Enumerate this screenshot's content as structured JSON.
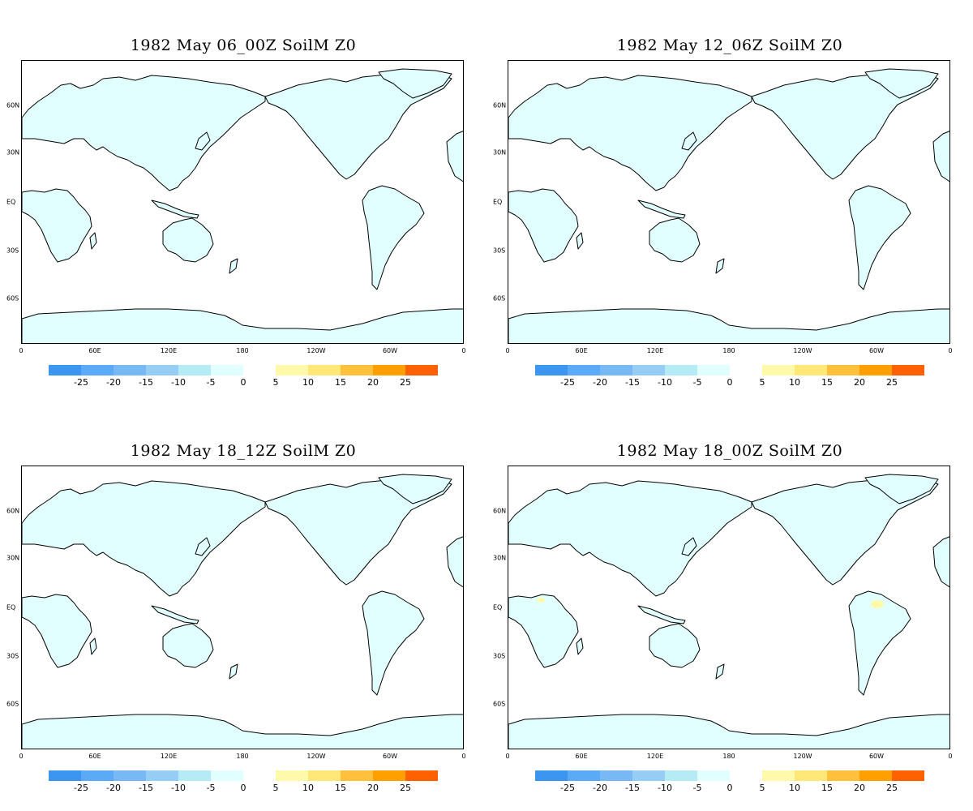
{
  "panels": [
    {
      "title": "1982 May 06_00Z SoilM Z0",
      "yellow_patch": false
    },
    {
      "title": "1982 May 12_06Z SoilM Z0",
      "yellow_patch": false
    },
    {
      "title": "1982 May 18_12Z SoilM Z0",
      "yellow_patch": false
    },
    {
      "title": "1982 May 18_00Z SoilM Z0",
      "yellow_patch": true
    }
  ],
  "lat_labels": [
    "60N",
    "30N",
    "EQ",
    "30S",
    "60S"
  ],
  "lon_labels": [
    "0",
    "60E",
    "120E",
    "180",
    "120W",
    "60W",
    "0"
  ],
  "colorbar": {
    "negative_colors": [
      "#3c96f0",
      "#5aaaf5",
      "#78b9f5",
      "#96cdf5",
      "#b4ebf5",
      "#e1ffff"
    ],
    "negative_labels": [
      "-25",
      "-20",
      "-15",
      "-10",
      "-5",
      "0"
    ],
    "positive_colors": [
      "#fffaaa",
      "#ffe878",
      "#ffc03c",
      "#ffa000",
      "#ff6000"
    ],
    "positive_labels": [
      "5",
      "10",
      "15",
      "20",
      "25"
    ]
  },
  "land_color": "#e1ffff"
}
